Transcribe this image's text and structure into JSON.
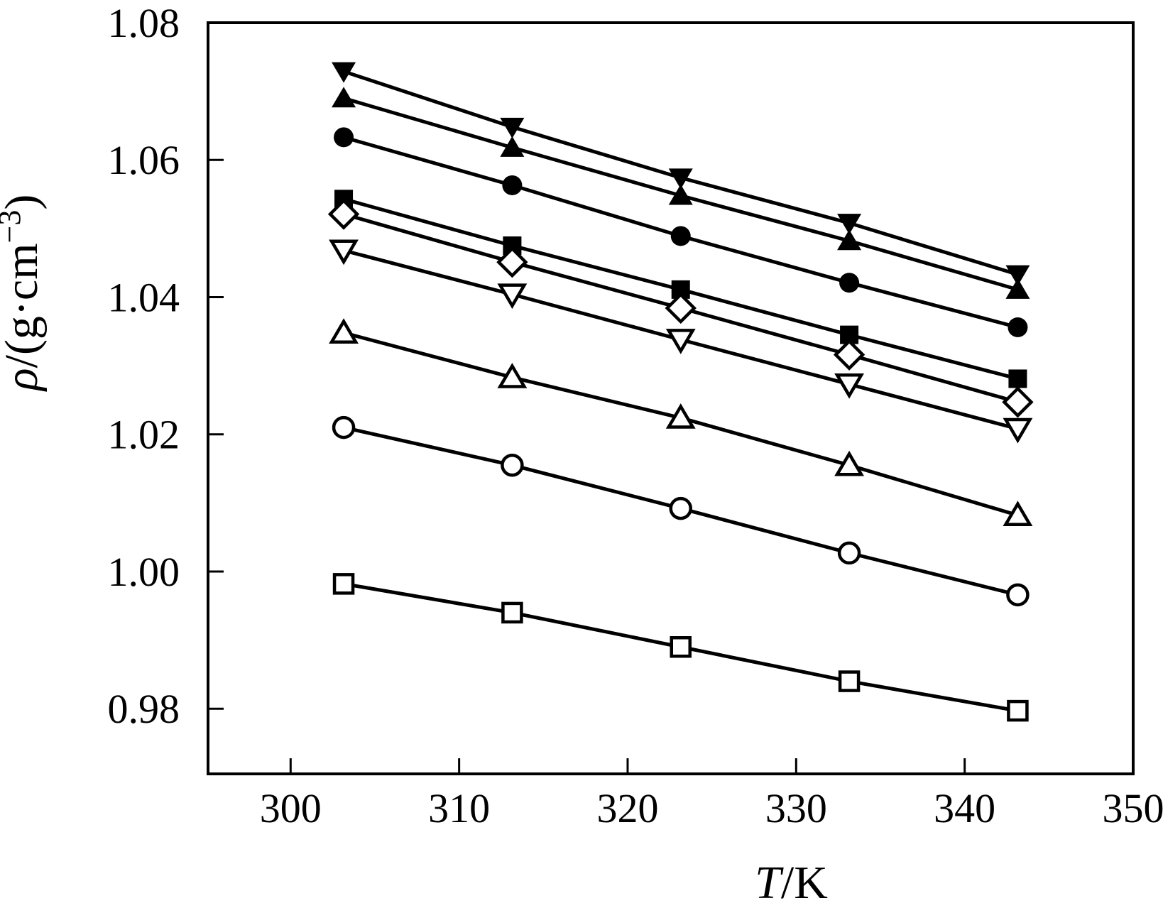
{
  "figure": {
    "background": "#ffffff",
    "axis_color": "#000000",
    "line_color": "#000000",
    "marker_fill": "#000000",
    "marker_open_fill": "#ffffff"
  },
  "chart_data": {
    "type": "line",
    "title": "",
    "xlabel": "T/K",
    "xlabel_parts": {
      "symbol": "T",
      "rest": "/K"
    },
    "ylabel": "ρ/(g·cm−3)",
    "ylabel_parts": {
      "symbol": "ρ",
      "middle": "/(g·cm",
      "sup": "−3",
      "end": ")"
    },
    "grid": false,
    "legend": "none",
    "xlim": [
      295.1,
      350
    ],
    "ylim": [
      0.9705,
      1.08
    ],
    "x_ticks": [
      300,
      310,
      320,
      330,
      340,
      350
    ],
    "x_tick_labels": [
      "300",
      "310",
      "320",
      "330",
      "340",
      "350"
    ],
    "y_ticks": [
      1.08,
      1.06,
      1.04,
      1.02,
      1.0,
      0.98
    ],
    "y_tick_labels": [
      "1.08",
      "1.06",
      "1.04",
      "1.02",
      "1.00",
      "0.98"
    ],
    "x": [
      303.15,
      313.15,
      323.15,
      333.15,
      343.15
    ],
    "series": [
      {
        "name": "series-triangle-down-filled",
        "marker": "triangle-down-filled",
        "values": [
          1.0729,
          1.0648,
          1.0574,
          1.0508,
          1.0433
        ]
      },
      {
        "name": "series-triangle-up-filled",
        "marker": "triangle-up-filled",
        "values": [
          1.069,
          1.0618,
          1.0548,
          1.0482,
          1.0411
        ]
      },
      {
        "name": "series-circle-filled",
        "marker": "circle-filled",
        "values": [
          1.0633,
          1.0563,
          1.0489,
          1.0421,
          1.0356
        ]
      },
      {
        "name": "series-square-filled",
        "marker": "square-filled",
        "values": [
          1.0543,
          1.0475,
          1.0411,
          1.0345,
          1.0281
        ]
      },
      {
        "name": "series-diamond-open",
        "marker": "diamond-open",
        "values": [
          1.0521,
          1.0451,
          1.0384,
          1.0316,
          1.0247
        ]
      },
      {
        "name": "series-triangle-down-open",
        "marker": "triangle-down-open",
        "values": [
          1.0468,
          1.0404,
          1.0338,
          1.0273,
          1.0208
        ]
      },
      {
        "name": "series-triangle-up-open",
        "marker": "triangle-up-open",
        "values": [
          1.0348,
          1.0283,
          1.0224,
          1.0155,
          1.0082
        ]
      },
      {
        "name": "series-circle-open",
        "marker": "circle-open",
        "values": [
          1.021,
          1.0155,
          1.0092,
          1.0027,
          0.9966
        ]
      },
      {
        "name": "series-square-open",
        "marker": "square-open",
        "values": [
          0.9982,
          0.994,
          0.989,
          0.984,
          0.9797
        ]
      }
    ]
  }
}
